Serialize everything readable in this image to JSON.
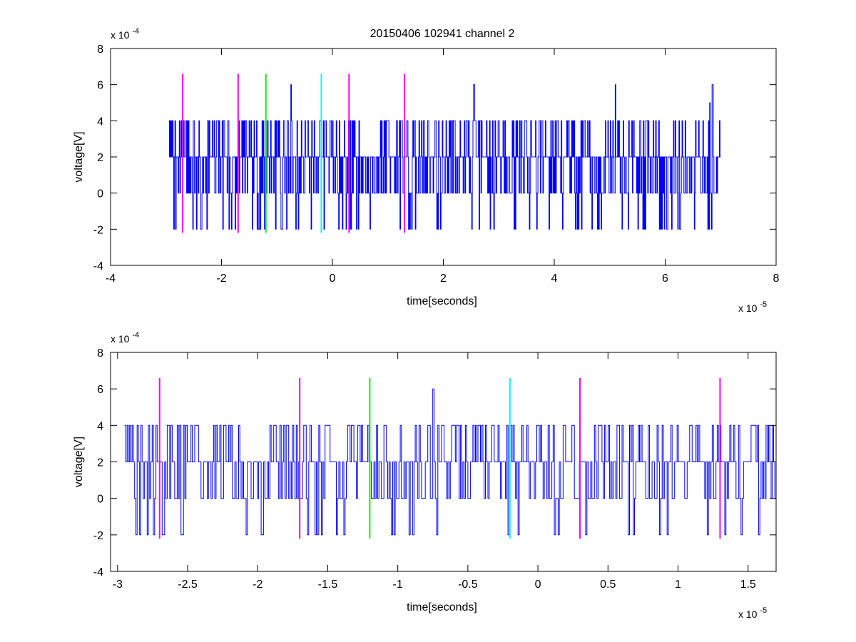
{
  "figure_title": "20150406 102941 channel 2",
  "colors": {
    "signal": "#0000ff",
    "marker_magenta": "#ff00ff",
    "marker_green": "#00ff00",
    "marker_cyan": "#00ffff",
    "axes": "#000000"
  },
  "chart_data": [
    {
      "type": "line",
      "title": "20150406 102941 channel 2",
      "xlabel": "time[seconds]",
      "ylabel": "voltage[V]",
      "x_exponent_label": "x 10",
      "x_exponent_power": "-5",
      "y_exponent_label": "x 10",
      "y_exponent_power": "-4",
      "xlim": [
        -4,
        8
      ],
      "ylim": [
        -4,
        8
      ],
      "x_ticks": [
        -4,
        -2,
        0,
        2,
        4,
        6,
        8
      ],
      "y_ticks": [
        -4,
        -2,
        0,
        2,
        4,
        6,
        8
      ],
      "x_tick_labels": [
        "-4",
        "-2",
        "0",
        "2",
        "4",
        "6",
        "8"
      ],
      "y_tick_labels": [
        "-4",
        "-2",
        "0",
        "2",
        "4",
        "6",
        "8"
      ],
      "grid": false,
      "signal": {
        "x_start": -2.95,
        "x_end": 7.0,
        "levels": [
          -2,
          0,
          2,
          4,
          6
        ],
        "baseline": 2,
        "peaks": [
          {
            "x": -0.75,
            "y": 6
          },
          {
            "x": 2.55,
            "y": 6
          },
          {
            "x": 5.1,
            "y": 6
          },
          {
            "x": 6.85,
            "y": 6
          },
          {
            "x": 6.8,
            "y": 5
          }
        ]
      },
      "markers": [
        {
          "x": -2.7,
          "y_min": -2.2,
          "y_max": 6.6,
          "color": "magenta"
        },
        {
          "x": -1.7,
          "y_min": -2.2,
          "y_max": 6.6,
          "color": "magenta"
        },
        {
          "x": -1.2,
          "y_min": -2.2,
          "y_max": 6.6,
          "color": "green"
        },
        {
          "x": -0.2,
          "y_min": -2.2,
          "y_max": 6.6,
          "color": "cyan"
        },
        {
          "x": 0.3,
          "y_min": -2.2,
          "y_max": 6.6,
          "color": "magenta"
        },
        {
          "x": 1.3,
          "y_min": -2.2,
          "y_max": 6.6,
          "color": "magenta"
        }
      ]
    },
    {
      "type": "line",
      "xlabel": "time[seconds]",
      "ylabel": "voltage[V]",
      "x_exponent_label": "x 10",
      "x_exponent_power": "-5",
      "y_exponent_label": "x 10",
      "y_exponent_power": "-4",
      "xlim": [
        -3.05,
        1.7
      ],
      "ylim": [
        -4,
        8
      ],
      "x_ticks": [
        -3,
        -2.5,
        -2,
        -1.5,
        -1,
        -0.5,
        0,
        0.5,
        1,
        1.5
      ],
      "y_ticks": [
        -4,
        -2,
        0,
        2,
        4,
        6,
        8
      ],
      "x_tick_labels": [
        "-3",
        "-2.5",
        "-2",
        "-1.5",
        "-1",
        "-0.5",
        "0",
        "0.5",
        "1",
        "1.5"
      ],
      "y_tick_labels": [
        "-4",
        "-2",
        "0",
        "2",
        "4",
        "6",
        "8"
      ],
      "grid": false,
      "signal": {
        "x_start": -2.95,
        "x_end": 1.7,
        "levels": [
          -2,
          0,
          2,
          4,
          6
        ],
        "baseline": 2,
        "peaks": [
          {
            "x": -0.75,
            "y": 6
          }
        ]
      },
      "markers": [
        {
          "x": -2.7,
          "y_min": -2.2,
          "y_max": 6.6,
          "color": "magenta"
        },
        {
          "x": -1.7,
          "y_min": -2.2,
          "y_max": 6.6,
          "color": "magenta"
        },
        {
          "x": -1.2,
          "y_min": -2.2,
          "y_max": 6.6,
          "color": "green"
        },
        {
          "x": -0.2,
          "y_min": -2.2,
          "y_max": 6.6,
          "color": "cyan"
        },
        {
          "x": 0.3,
          "y_min": -2.2,
          "y_max": 6.6,
          "color": "magenta"
        },
        {
          "x": 1.3,
          "y_min": -2.2,
          "y_max": 6.6,
          "color": "magenta"
        }
      ]
    }
  ]
}
